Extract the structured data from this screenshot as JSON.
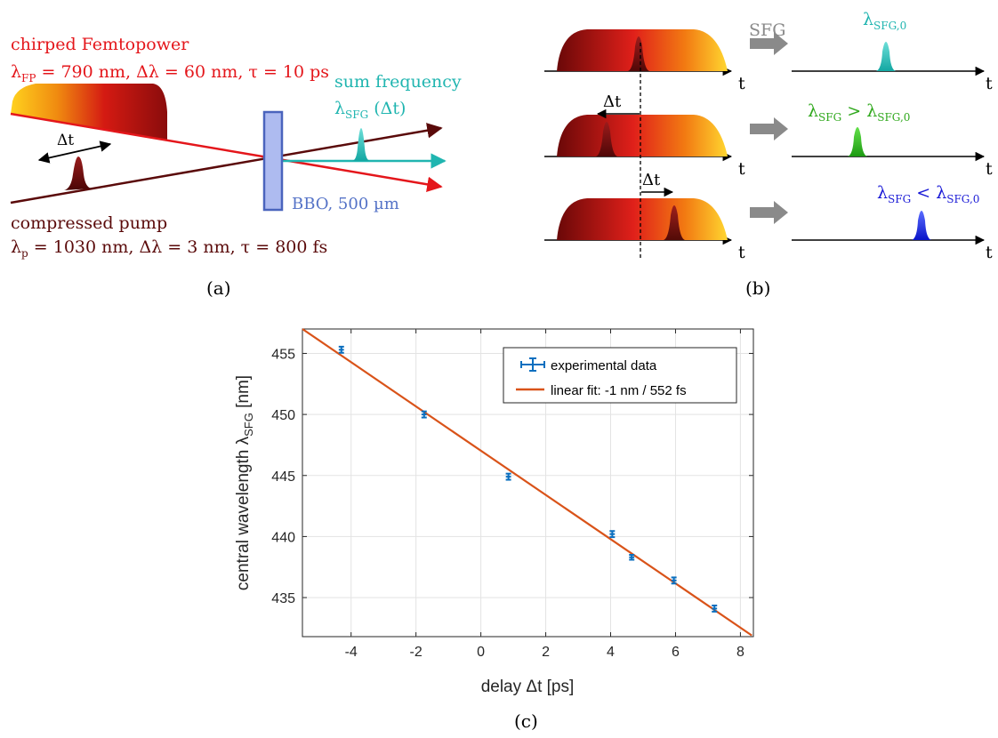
{
  "colors": {
    "femtopower_red": "#e4161b",
    "pump_dark": "#5a0a0a",
    "sfg_teal": "#20b5b0",
    "bbo_blue": "#5573c7",
    "gray_arrow": "#8a8a8a",
    "green_label": "#2fa81c",
    "blue_label": "#1a1ad6",
    "data_blue": "#0b6fbf",
    "fit_orange": "#d95319"
  },
  "panel_a": {
    "label": "(a)",
    "femtopower_title": "chirped Femtopower",
    "femtopower_params": {
      "lambda_sym": "λ",
      "lambda_sub": "FP",
      "rest": " = 790 nm, Δλ = 60 nm, τ = 10 ps"
    },
    "sum_frequency_title": "sum frequency",
    "sfg_label": {
      "lambda_sym": "λ",
      "sub": "SFG",
      "arg": " (Δt)"
    },
    "delay_label": "Δt",
    "bbo_label": "BBO, 500 µm",
    "pump_title": "compressed pump",
    "pump_params": {
      "lambda_sym": "λ",
      "lambda_sub": "p",
      "rest": " = 1030 nm, Δλ = 3 nm, τ = 800 fs"
    }
  },
  "panel_b": {
    "label": "(b)",
    "sfg_arrow_label": "SFG",
    "time_label": "t",
    "delay_label": "Δt",
    "rows": [
      {
        "left": {
          "sym": "λ",
          "sub": "SFG,0"
        },
        "relation": "",
        "right": {
          "sym": "",
          "sub": ""
        },
        "color": "#20b5b0"
      },
      {
        "left": {
          "sym": "λ",
          "sub": "SFG"
        },
        "relation": " > ",
        "right": {
          "sym": "λ",
          "sub": "SFG,0"
        },
        "color": "#2fa81c"
      },
      {
        "left": {
          "sym": "λ",
          "sub": "SFG"
        },
        "relation": " < ",
        "right": {
          "sym": "λ",
          "sub": "SFG,0"
        },
        "color": "#1a1ad6"
      }
    ]
  },
  "panel_c": {
    "label": "(c)",
    "legend": {
      "data": "experimental data",
      "fit": "linear fit: -1 nm / 552 fs"
    },
    "chart_data": {
      "type": "scatter",
      "xlabel": "delay Δt [ps]",
      "ylabel": {
        "main": "central wavelength λ",
        "sub": "SFG",
        "unit": " [nm]"
      },
      "xlim": [
        -5.5,
        8.4
      ],
      "ylim": [
        431.8,
        457.0
      ],
      "xticks": [
        -4,
        -2,
        0,
        2,
        4,
        6,
        8
      ],
      "yticks": [
        435,
        440,
        445,
        450,
        455
      ],
      "grid": true,
      "legend_position": "top-right",
      "series": [
        {
          "name": "experimental data",
          "x": [
            -4.3,
            -1.75,
            0.85,
            4.05,
            4.65,
            5.95,
            7.2
          ],
          "y": [
            455.3,
            450.0,
            444.9,
            440.2,
            438.3,
            436.4,
            434.1
          ],
          "yerr": [
            0.25,
            0.25,
            0.25,
            0.25,
            0.2,
            0.25,
            0.25
          ],
          "xerr": [
            0.08,
            0.08,
            0.08,
            0.08,
            0.08,
            0.08,
            0.08
          ]
        },
        {
          "name": "linear fit: -1 nm / 552 fs",
          "line": {
            "x": [
              -5.5,
              8.35
            ],
            "y": [
              457.0,
              431.9
            ]
          }
        }
      ]
    }
  }
}
